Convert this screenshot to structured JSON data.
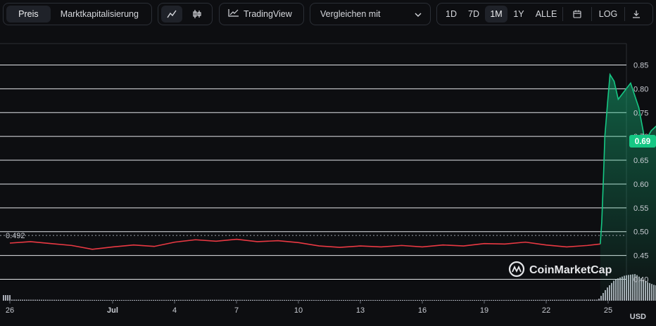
{
  "toolbar": {
    "tabs": [
      {
        "label": "Preis",
        "active": true
      },
      {
        "label": "Marktkapitalisierung",
        "active": false
      }
    ],
    "chart_type_icons": [
      "line-chart-icon",
      "candlestick-icon"
    ],
    "tradingview_label": "TradingView",
    "compare_label": "Vergleichen mit",
    "ranges": [
      {
        "label": "1D",
        "active": false
      },
      {
        "label": "7D",
        "active": false
      },
      {
        "label": "1M",
        "active": true
      },
      {
        "label": "1Y",
        "active": false
      },
      {
        "label": "ALLE",
        "active": false
      }
    ],
    "calendar_icon": "calendar-icon",
    "log_label": "LOG",
    "download_icon": "download-icon"
  },
  "watermark": "CoinMarketCap",
  "currency_label": "USD",
  "chart_data": {
    "type": "area",
    "y_ticks": [
      "0.85",
      "0.80",
      "0.75",
      "0.70",
      "0.65",
      "0.60",
      "0.55",
      "0.50",
      "0.45",
      "0.40"
    ],
    "x_ticks": [
      "26",
      "Jul",
      "4",
      "7",
      "10",
      "13",
      "16",
      "19",
      "22",
      "25"
    ],
    "ylim": [
      0.355,
      0.895
    ],
    "reference_line": {
      "value": 0.492,
      "label": "0.492"
    },
    "current_price": {
      "value": 0.69,
      "label": "0.69"
    },
    "colors": {
      "down": "#ea3943",
      "up": "#16c784",
      "volume": "#b8bcc6"
    },
    "series": [
      {
        "values": [
          [
            0,
            0.476
          ],
          [
            1,
            0.479
          ],
          [
            2,
            0.475
          ],
          [
            3,
            0.471
          ],
          [
            4,
            0.463
          ],
          [
            5,
            0.468
          ],
          [
            6,
            0.472
          ],
          [
            7,
            0.469
          ],
          [
            8,
            0.478
          ],
          [
            9,
            0.483
          ],
          [
            10,
            0.48
          ],
          [
            11,
            0.484
          ],
          [
            12,
            0.479
          ],
          [
            13,
            0.481
          ],
          [
            14,
            0.477
          ],
          [
            15,
            0.47
          ],
          [
            16,
            0.467
          ],
          [
            17,
            0.47
          ],
          [
            18,
            0.468
          ],
          [
            19,
            0.471
          ],
          [
            20,
            0.468
          ],
          [
            21,
            0.472
          ],
          [
            22,
            0.47
          ],
          [
            23,
            0.475
          ],
          [
            24,
            0.474
          ],
          [
            25,
            0.478
          ],
          [
            26,
            0.472
          ],
          [
            27,
            0.468
          ],
          [
            28,
            0.471
          ],
          [
            28.63,
            0.474
          ]
        ]
      },
      {
        "values": [
          [
            28.63,
            0.474
          ],
          [
            28.7,
            0.52
          ],
          [
            28.78,
            0.61
          ],
          [
            28.85,
            0.7
          ],
          [
            29.0,
            0.78
          ],
          [
            29.1,
            0.83
          ],
          [
            29.3,
            0.816
          ],
          [
            29.5,
            0.778
          ],
          [
            29.8,
            0.795
          ],
          [
            30.1,
            0.812
          ],
          [
            30.5,
            0.76
          ],
          [
            30.8,
            0.69
          ],
          [
            31.1,
            0.712
          ],
          [
            31.4,
            0.724
          ],
          [
            31.8,
            0.716
          ],
          [
            32.2,
            0.721
          ],
          [
            32.6,
            0.718
          ],
          [
            33.0,
            0.713
          ],
          [
            33.5,
            0.748
          ],
          [
            33.9,
            0.76
          ],
          [
            34.4,
            0.754
          ],
          [
            34.8,
            0.744
          ],
          [
            35.3,
            0.746
          ],
          [
            35.8,
            0.741
          ],
          [
            36.2,
            0.749
          ],
          [
            36.6,
            0.762
          ],
          [
            37.0,
            0.778
          ],
          [
            37.4,
            0.792
          ],
          [
            37.8,
            0.79
          ],
          [
            38.2,
            0.812
          ],
          [
            38.6,
            0.808
          ],
          [
            38.9,
            0.836
          ],
          [
            39.2,
            0.842
          ],
          [
            39.5,
            0.81
          ],
          [
            39.8,
            0.797
          ],
          [
            40.2,
            0.8
          ],
          [
            40.6,
            0.784
          ],
          [
            41.0,
            0.787
          ],
          [
            41.4,
            0.782
          ],
          [
            41.8,
            0.777
          ],
          [
            42.2,
            0.77
          ],
          [
            42.5,
            0.757
          ],
          [
            42.8,
            0.744
          ],
          [
            43.2,
            0.747
          ],
          [
            43.6,
            0.74
          ],
          [
            44.0,
            0.737
          ],
          [
            44.3,
            0.725
          ],
          [
            44.6,
            0.706
          ],
          [
            44.9,
            0.699
          ],
          [
            45.2,
            0.705
          ],
          [
            45.5,
            0.698
          ],
          [
            45.8,
            0.687
          ],
          [
            46.1,
            0.69
          ]
        ]
      }
    ],
    "volume": [
      [
        0,
        0.03
      ],
      [
        5,
        0.02
      ],
      [
        10,
        0.025
      ],
      [
        15,
        0.02
      ],
      [
        20,
        0.018
      ],
      [
        25,
        0.022
      ],
      [
        28.5,
        0.03
      ],
      [
        28.9,
        0.35
      ],
      [
        29.3,
        0.6
      ],
      [
        29.8,
        0.72
      ],
      [
        30.3,
        0.76
      ],
      [
        30.8,
        0.55
      ],
      [
        31.2,
        0.45
      ],
      [
        31.8,
        0.38
      ],
      [
        32.5,
        0.33
      ],
      [
        33.2,
        0.26
      ],
      [
        34.0,
        0.3
      ],
      [
        34.8,
        0.26
      ],
      [
        35.5,
        0.24
      ],
      [
        36.2,
        0.22
      ],
      [
        37.0,
        0.28
      ],
      [
        37.8,
        0.32
      ],
      [
        38.6,
        0.34
      ],
      [
        39.4,
        0.4
      ],
      [
        40.2,
        0.34
      ],
      [
        41.0,
        0.3
      ],
      [
        42.0,
        0.26
      ],
      [
        43.0,
        0.22
      ],
      [
        44.0,
        0.2
      ],
      [
        45.0,
        0.18
      ],
      [
        46.1,
        0.16
      ]
    ]
  }
}
